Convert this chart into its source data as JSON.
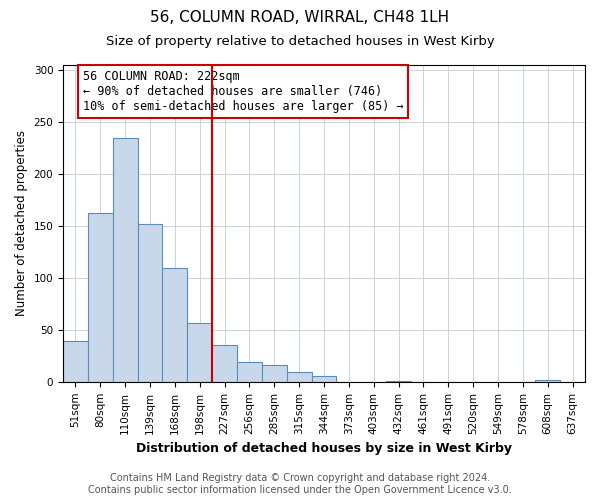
{
  "title": "56, COLUMN ROAD, WIRRAL, CH48 1LH",
  "subtitle": "Size of property relative to detached houses in West Kirby",
  "xlabel": "Distribution of detached houses by size in West Kirby",
  "ylabel": "Number of detached properties",
  "bar_labels": [
    "51sqm",
    "80sqm",
    "110sqm",
    "139sqm",
    "168sqm",
    "198sqm",
    "227sqm",
    "256sqm",
    "285sqm",
    "315sqm",
    "344sqm",
    "373sqm",
    "403sqm",
    "432sqm",
    "461sqm",
    "491sqm",
    "520sqm",
    "549sqm",
    "578sqm",
    "608sqm",
    "637sqm"
  ],
  "bar_values": [
    39,
    163,
    235,
    152,
    110,
    57,
    35,
    19,
    16,
    9,
    6,
    0,
    0,
    1,
    0,
    0,
    0,
    0,
    0,
    2,
    0
  ],
  "bar_color": "#c8d8ea",
  "bar_edge_color": "#5b8db8",
  "vline_color": "#cc0000",
  "annotation_text": "56 COLUMN ROAD: 222sqm\n← 90% of detached houses are smaller (746)\n10% of semi-detached houses are larger (85) →",
  "annotation_box_color": "#ffffff",
  "annotation_box_edge": "#cc0000",
  "ylim": [
    0,
    305
  ],
  "yticks": [
    0,
    50,
    100,
    150,
    200,
    250,
    300
  ],
  "footer_line1": "Contains HM Land Registry data © Crown copyright and database right 2024.",
  "footer_line2": "Contains public sector information licensed under the Open Government Licence v3.0.",
  "background_color": "#ffffff",
  "plot_bg_color": "#ffffff",
  "title_fontsize": 11,
  "subtitle_fontsize": 9.5,
  "xlabel_fontsize": 9,
  "ylabel_fontsize": 8.5,
  "tick_fontsize": 7.5,
  "footer_fontsize": 7,
  "annotation_fontsize": 8.5,
  "grid_color": "#c8d4e0"
}
